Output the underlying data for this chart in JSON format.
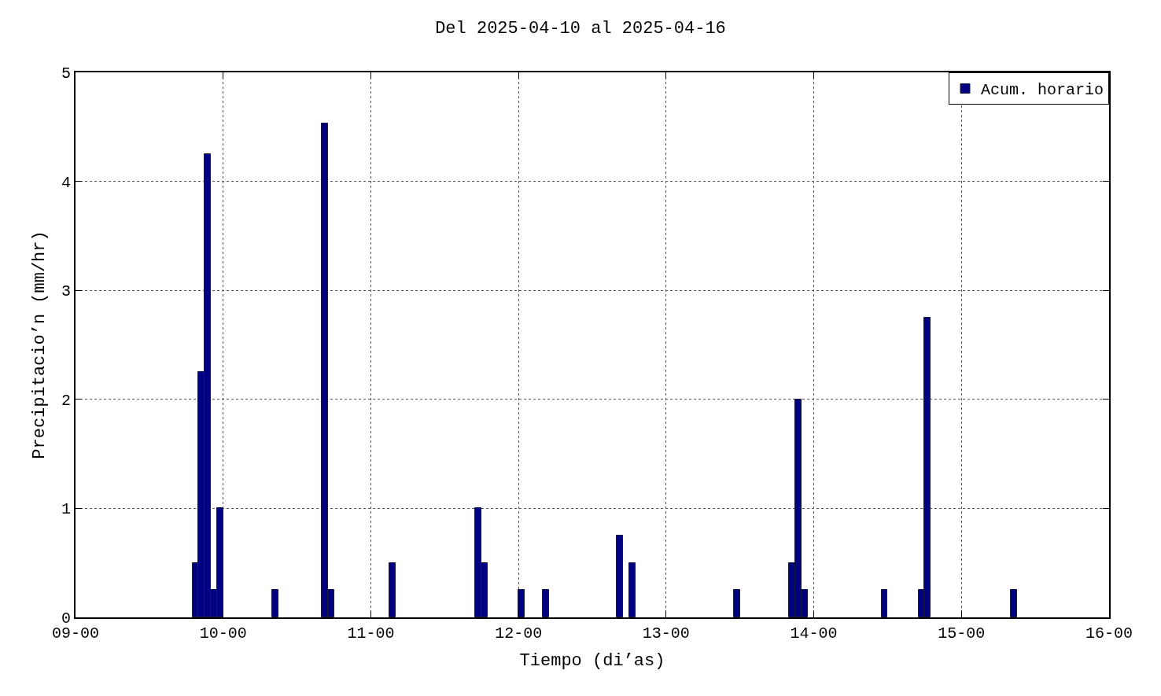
{
  "chart_data": {
    "type": "bar",
    "title": "Del 2025-04-10 al 2025-04-16",
    "xlabel": "Tiempo (di’as)",
    "ylabel": "Precipitacio’n (mm/hr)",
    "x": [
      "2025-04-09T19:30",
      "2025-04-09T20:30",
      "2025-04-09T21:30",
      "2025-04-09T22:30",
      "2025-04-09T23:30",
      "2025-04-10T08:30",
      "2025-04-10T16:30",
      "2025-04-10T17:30",
      "2025-04-11T03:30",
      "2025-04-11T17:30",
      "2025-04-11T18:30",
      "2025-04-12T00:30",
      "2025-04-12T04:30",
      "2025-04-12T16:30",
      "2025-04-12T18:30",
      "2025-04-13T11:30",
      "2025-04-13T20:30",
      "2025-04-13T21:30",
      "2025-04-13T22:30",
      "2025-04-14T11:30",
      "2025-04-14T17:30",
      "2025-04-14T18:30",
      "2025-04-15T08:30"
    ],
    "series": [
      {
        "name": "Acum. horario",
        "color": "#000080",
        "values": [
          0.5,
          2.25,
          4.25,
          0.25,
          1.0,
          0.25,
          4.53,
          0.25,
          0.5,
          1.0,
          0.5,
          0.25,
          0.25,
          0.75,
          0.5,
          0.25,
          0.5,
          2.0,
          0.25,
          0.25,
          0.25,
          2.75,
          0.25
        ]
      }
    ],
    "xlim": [
      "2025-04-09",
      "2025-04-16"
    ],
    "xticks": [
      {
        "value": "2025-04-09",
        "label": "09-00"
      },
      {
        "value": "2025-04-10",
        "label": "10-00"
      },
      {
        "value": "2025-04-11",
        "label": "11-00"
      },
      {
        "value": "2025-04-12",
        "label": "12-00"
      },
      {
        "value": "2025-04-13",
        "label": "13-00"
      },
      {
        "value": "2025-04-14",
        "label": "14-00"
      },
      {
        "value": "2025-04-15",
        "label": "15-00"
      },
      {
        "value": "2025-04-16",
        "label": "16-00"
      }
    ],
    "ylim": [
      0,
      5
    ],
    "yticks": [
      0,
      1,
      2,
      3,
      4,
      5
    ],
    "grid": true,
    "legend": "top right"
  }
}
